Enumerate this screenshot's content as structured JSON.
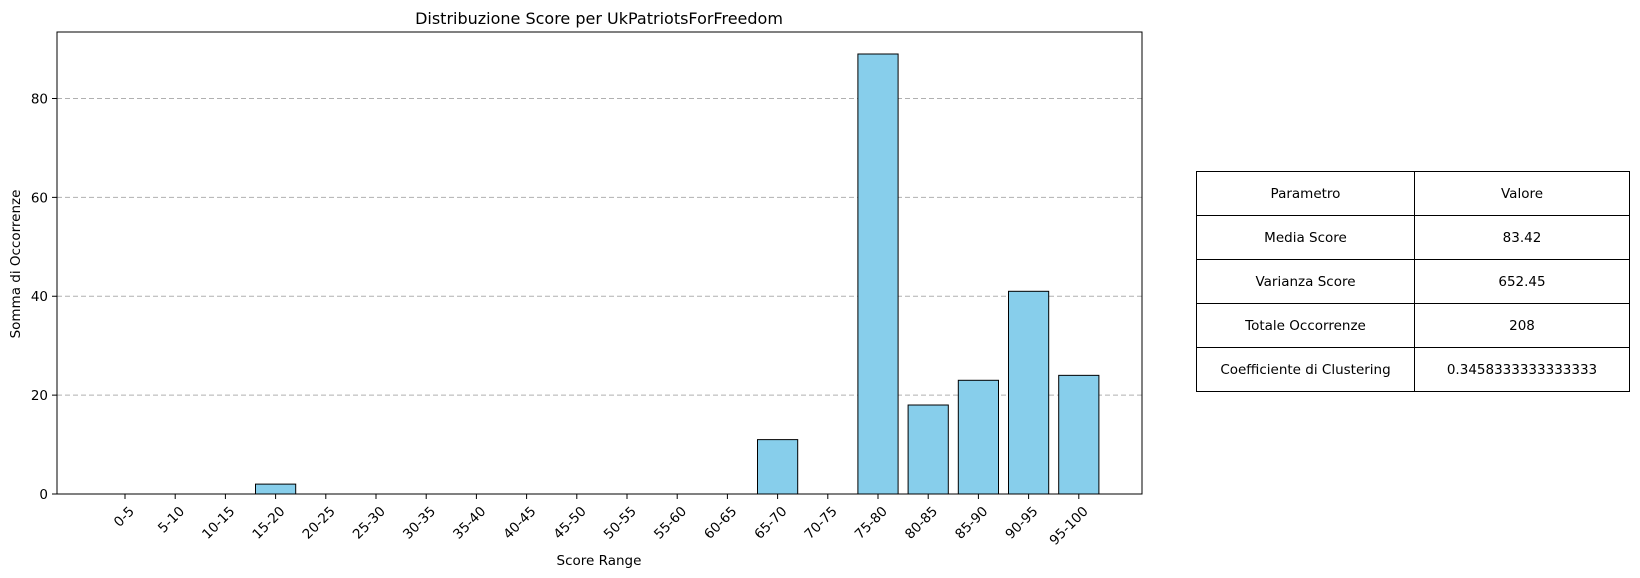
{
  "chart_data": {
    "type": "bar",
    "title": "Distribuzione Score per UkPatriotsForFreedom",
    "xlabel": "Score Range",
    "ylabel": "Somma di Occorrenze",
    "categories": [
      "0-5",
      "5-10",
      "10-15",
      "15-20",
      "20-25",
      "25-30",
      "30-35",
      "35-40",
      "40-45",
      "45-50",
      "50-55",
      "55-60",
      "60-65",
      "65-70",
      "70-75",
      "75-80",
      "80-85",
      "85-90",
      "90-95",
      "95-100"
    ],
    "values": [
      0,
      0,
      0,
      2,
      0,
      0,
      0,
      0,
      0,
      0,
      0,
      0,
      0,
      11,
      0,
      89,
      18,
      23,
      41,
      24
    ],
    "ylim": [
      0,
      93.45
    ],
    "yticks": [
      0,
      20,
      40,
      60,
      80
    ],
    "grid": "y-dashed",
    "bar_color": "#87ceeb",
    "edge_color": "#000000"
  },
  "table": {
    "header": {
      "param": "Parametro",
      "value": "Valore"
    },
    "rows": [
      {
        "param": "Media Score",
        "value": "83.42"
      },
      {
        "param": "Varianza Score",
        "value": "652.45"
      },
      {
        "param": "Totale Occorrenze",
        "value": "208"
      },
      {
        "param": "Coefficiente di Clustering",
        "value": "0.3458333333333333"
      }
    ]
  }
}
